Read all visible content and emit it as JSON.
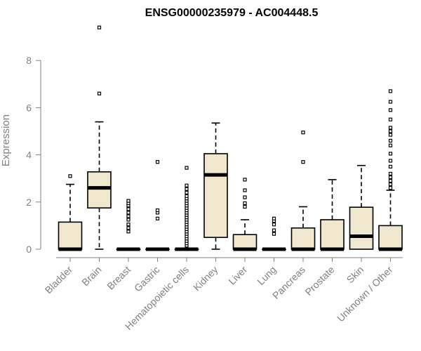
{
  "chart_data": {
    "type": "boxplot",
    "title": "ENSG00000235979 - AC004448.5",
    "xlabel": "",
    "ylabel": "Expression",
    "ylim": [
      0,
      9.5
    ],
    "yticks": [
      0,
      2,
      4,
      6,
      8
    ],
    "grid": false,
    "legend": "none",
    "colors": {
      "box_fill": "#efe8cf",
      "stroke": "#000000",
      "axis": "#808080"
    },
    "categories": [
      "Bladder",
      "Brain",
      "Breast",
      "Gastric",
      "Hematopoietic cells",
      "Kidney",
      "Liver",
      "Lung",
      "Pancreas",
      "Prostate",
      "Skin",
      "Unknown / Other"
    ],
    "boxes": [
      {
        "q1": 0,
        "median": 0,
        "q3": 1.15,
        "whisker_low": 0,
        "whisker_high": 2.75,
        "outliers": [
          3.1
        ]
      },
      {
        "q1": 1.75,
        "median": 2.6,
        "q3": 3.28,
        "whisker_low": 0,
        "whisker_high": 5.4,
        "outliers": [
          6.6,
          9.4
        ]
      },
      {
        "q1": 0,
        "median": 0,
        "q3": 0,
        "whisker_low": 0,
        "whisker_high": 0,
        "outliers": [
          0.75,
          0.9,
          1.05,
          1.25,
          1.4,
          1.55,
          1.7,
          1.85,
          1.95,
          2.05
        ]
      },
      {
        "q1": 0,
        "median": 0,
        "q3": 0,
        "whisker_low": 0,
        "whisker_high": 0,
        "outliers": [
          1.3,
          1.55,
          1.65,
          3.7
        ]
      },
      {
        "q1": 0,
        "median": 0,
        "q3": 0,
        "whisker_low": 0,
        "whisker_high": 0,
        "outliers": [
          0.15,
          0.25,
          0.35,
          0.45,
          0.55,
          0.65,
          0.75,
          0.85,
          0.95,
          1.05,
          1.15,
          1.25,
          1.35,
          1.45,
          1.55,
          1.65,
          1.75,
          1.85,
          1.95,
          2.05,
          2.15,
          2.25,
          2.4,
          2.55,
          2.7,
          3.45
        ]
      },
      {
        "q1": 0.5,
        "median": 3.15,
        "q3": 4.05,
        "whisker_low": 0,
        "whisker_high": 5.35,
        "outliers": []
      },
      {
        "q1": 0,
        "median": 0,
        "q3": 0.62,
        "whisker_low": 0,
        "whisker_high": 1.25,
        "outliers": [
          1.8,
          1.95,
          2.2,
          2.5,
          2.95
        ]
      },
      {
        "q1": 0,
        "median": 0,
        "q3": 0,
        "whisker_low": 0,
        "whisker_high": 0,
        "outliers": [
          0.65,
          0.8,
          1.05,
          1.2,
          1.3
        ]
      },
      {
        "q1": 0,
        "median": 0,
        "q3": 0.9,
        "whisker_low": 0,
        "whisker_high": 1.8,
        "outliers": [
          3.7,
          4.95
        ]
      },
      {
        "q1": 0,
        "median": 0,
        "q3": 1.25,
        "whisker_low": 0,
        "whisker_high": 2.95,
        "outliers": []
      },
      {
        "q1": 0,
        "median": 0.55,
        "q3": 1.78,
        "whisker_low": 0,
        "whisker_high": 3.55,
        "outliers": []
      },
      {
        "q1": 0,
        "median": 0,
        "q3": 1.0,
        "whisker_low": 0,
        "whisker_high": 2.5,
        "outliers": [
          2.6,
          2.75,
          2.9,
          3.05,
          3.2,
          3.5,
          3.75,
          4.05,
          4.4,
          4.6,
          4.85,
          5.0,
          5.15,
          5.5,
          5.9,
          6.25,
          6.7
        ]
      }
    ]
  }
}
